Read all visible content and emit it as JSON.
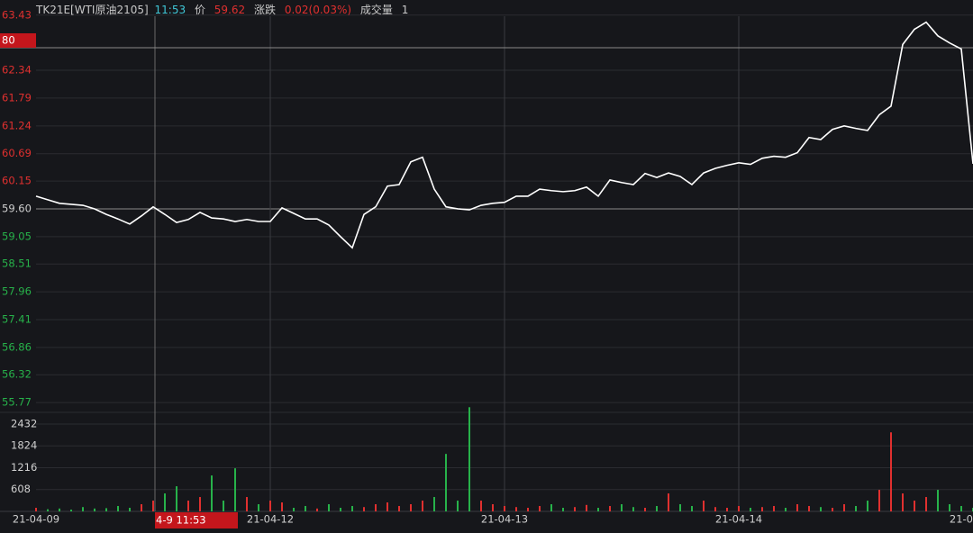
{
  "header": {
    "symbol": "TK21E[WTI原油2105]",
    "time": "11:53",
    "price_label": "价",
    "price": "59.62",
    "change_label": "涨跌",
    "change": "0.02(0.03%)",
    "volume_label": "成交量",
    "volume": "1"
  },
  "cursor": {
    "price_label": "80",
    "time_label": "4-9 11:53"
  },
  "chart_data": [
    {
      "type": "line",
      "color": "#ffffff",
      "up_color": "#e0302f",
      "down_color": "#27b24a",
      "neutral_color": "#cfcfcf",
      "reference": 59.6,
      "categories": [
        "21-04-09",
        null,
        null,
        null,
        null,
        null,
        null,
        null,
        null,
        null,
        null,
        null,
        null,
        null,
        null,
        null,
        null,
        null,
        null,
        null,
        "21-04-12",
        null,
        null,
        null,
        null,
        null,
        null,
        null,
        null,
        null,
        null,
        null,
        null,
        null,
        null,
        null,
        null,
        null,
        null,
        null,
        "21-04-13",
        null,
        null,
        null,
        null,
        null,
        null,
        null,
        null,
        null,
        null,
        null,
        null,
        null,
        null,
        null,
        null,
        null,
        null,
        null,
        "21-04-14",
        null,
        null,
        null,
        null,
        null,
        null,
        null,
        null,
        null,
        null,
        null,
        null,
        null,
        null,
        null,
        null,
        null,
        null,
        null,
        "21-0"
      ],
      "values": [
        59.85,
        59.78,
        59.71,
        59.69,
        59.67,
        59.6,
        59.49,
        59.4,
        59.3,
        59.46,
        59.64,
        59.49,
        59.33,
        59.39,
        59.53,
        59.42,
        59.4,
        59.35,
        59.39,
        59.35,
        59.35,
        59.62,
        59.51,
        59.4,
        59.4,
        59.28,
        59.05,
        58.83,
        59.49,
        59.64,
        60.05,
        60.08,
        60.53,
        60.62,
        59.99,
        59.64,
        59.6,
        59.58,
        59.67,
        59.71,
        59.73,
        59.85,
        59.85,
        59.99,
        59.96,
        59.94,
        59.96,
        60.03,
        59.85,
        60.17,
        60.12,
        60.08,
        60.3,
        60.22,
        60.31,
        60.24,
        60.08,
        60.31,
        60.4,
        60.46,
        60.51,
        60.48,
        60.6,
        60.64,
        60.62,
        60.71,
        61.01,
        60.97,
        61.17,
        61.24,
        61.19,
        61.15,
        61.46,
        61.63,
        62.85,
        63.15,
        63.29,
        63.02,
        62.88,
        62.76,
        60.49
      ],
      "ylim": [
        55.63,
        63.64
      ],
      "yticks": [
        63.43,
        62.34,
        61.79,
        61.24,
        60.69,
        60.15,
        {
          "value": 59.6,
          "label": "59.60"
        },
        59.05,
        58.51,
        57.96,
        57.41,
        56.86,
        56.32,
        55.77
      ],
      "grid": true
    },
    {
      "type": "bar",
      "values": [
        100,
        60,
        80,
        50,
        120,
        80,
        90,
        150,
        100,
        200,
        300,
        500,
        700,
        300,
        400,
        1000,
        300,
        1200,
        400,
        200,
        300,
        250,
        100,
        150,
        80,
        200,
        100,
        150,
        120,
        200,
        250,
        150,
        200,
        300,
        400,
        1600,
        300,
        2900,
        300,
        200,
        150,
        120,
        100,
        150,
        200,
        100,
        120,
        180,
        100,
        150,
        200,
        120,
        100,
        150,
        500,
        200,
        150,
        300,
        120,
        100,
        150,
        100,
        120,
        150,
        100,
        200,
        150,
        120,
        100,
        200,
        150,
        300,
        600,
        2200,
        500,
        300,
        400,
        600,
        200,
        150,
        100
      ],
      "ylim": [
        0,
        2707
      ],
      "yticks": [
        2432,
        1824,
        1216,
        608
      ],
      "grid": true
    }
  ]
}
